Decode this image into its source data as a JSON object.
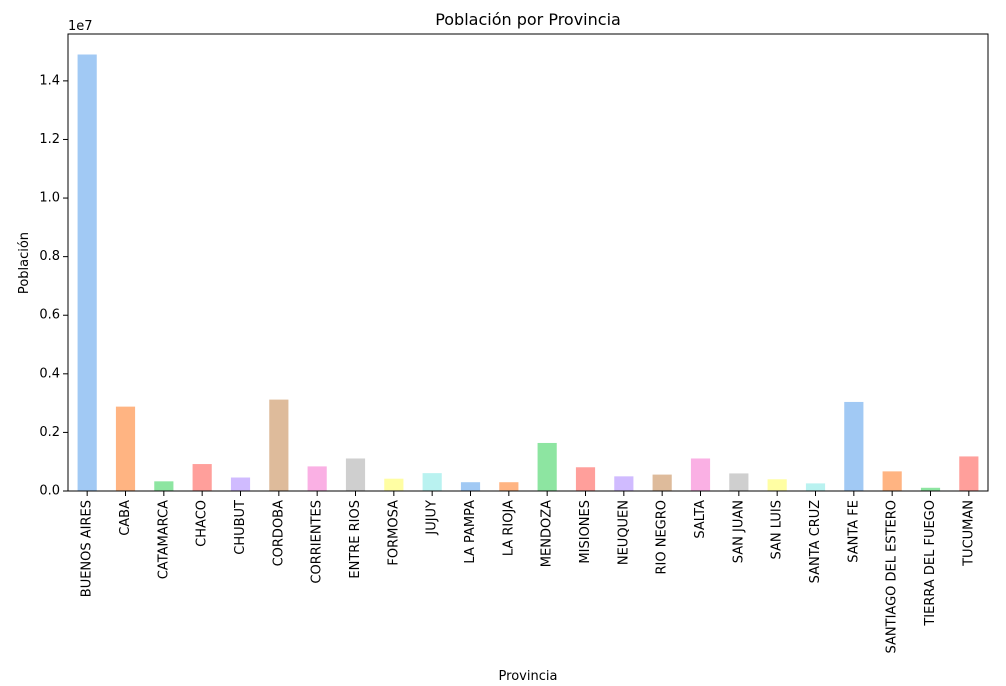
{
  "chart_data": {
    "type": "bar",
    "title": "Población por Provincia",
    "xlabel": "Provincia",
    "ylabel": "Población",
    "offset_label": "1e7",
    "ylim": [
      0,
      1.56
    ],
    "y_ticks": [
      0.0,
      0.2,
      0.4,
      0.6,
      0.8,
      1.0,
      1.2,
      1.4
    ],
    "y_tick_labels": [
      "0.0",
      "0.2",
      "0.4",
      "0.6",
      "0.8",
      "1.0",
      "1.2",
      "1.4"
    ],
    "y_multiplier": 10000000,
    "grid": false,
    "legend": "none",
    "categories": [
      "BUENOS AIRES",
      "CABA",
      "CATAMARCA",
      "CHACO",
      "CHUBUT",
      "CORDOBA",
      "CORRIENTES",
      "ENTRE RIOS",
      "FORMOSA",
      "JUJUY",
      "LA PAMPA",
      "LA RIOJA",
      "MENDOZA",
      "MISIONES",
      "NEUQUEN",
      "RIO NEGRO",
      "SALTA",
      "SAN JUAN",
      "SAN LUIS",
      "SANTA CRUZ",
      "SANTA FE",
      "SANTIAGO DEL ESTERO",
      "TIERRA DEL FUEGO",
      "TUCUMAN"
    ],
    "values": [
      14900000,
      2880000,
      330000,
      920000,
      460000,
      3120000,
      840000,
      1110000,
      420000,
      610000,
      300000,
      300000,
      1640000,
      810000,
      500000,
      560000,
      1110000,
      600000,
      400000,
      260000,
      3040000,
      670000,
      110000,
      1180000
    ],
    "colors": [
      "#a1c9f4",
      "#ffb482",
      "#8de5a1",
      "#ff9f9b",
      "#d0bbff",
      "#debb9b",
      "#fab0e4",
      "#cfcfcf",
      "#fffea3",
      "#b9f2f0"
    ]
  }
}
